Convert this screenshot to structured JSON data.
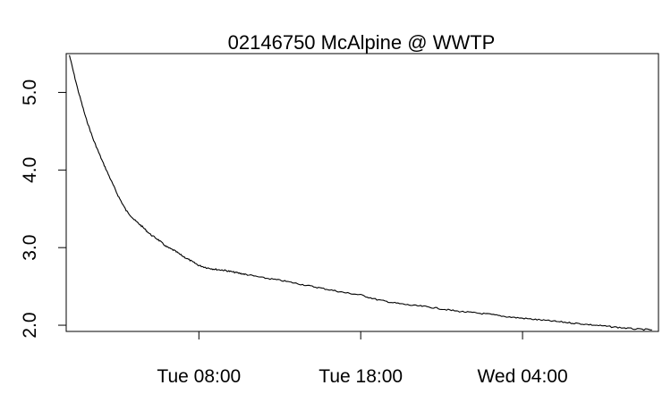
{
  "chart_data": {
    "type": "line",
    "title": "02146750 McAlpine @ WWTP",
    "xlabel": "",
    "ylabel": "",
    "x_ticks": [
      {
        "label": "Tue 08:00",
        "hours": 8
      },
      {
        "label": "Tue 18:00",
        "hours": 18
      },
      {
        "label": "Wed 04:00",
        "hours": 28
      }
    ],
    "y_ticks": [
      {
        "label": "2.0",
        "value": 2.0
      },
      {
        "label": "3.0",
        "value": 3.0
      },
      {
        "label": "4.0",
        "value": 4.0
      },
      {
        "label": "5.0",
        "value": 5.0
      }
    ],
    "xlim_hours": [
      -0.2,
      36.4
    ],
    "ylim": [
      1.92,
      5.5
    ],
    "series": [
      {
        "name": "",
        "points": [
          [
            0.0,
            5.48
          ],
          [
            0.5,
            5.05
          ],
          [
            1.0,
            4.68
          ],
          [
            1.5,
            4.38
          ],
          [
            2.0,
            4.13
          ],
          [
            2.5,
            3.9
          ],
          [
            3.0,
            3.67
          ],
          [
            3.5,
            3.48
          ],
          [
            4.0,
            3.36
          ],
          [
            4.5,
            3.27
          ],
          [
            5.0,
            3.17
          ],
          [
            5.5,
            3.1
          ],
          [
            6.0,
            3.01
          ],
          [
            6.5,
            2.96
          ],
          [
            7.0,
            2.89
          ],
          [
            7.5,
            2.83
          ],
          [
            8.0,
            2.77
          ],
          [
            8.5,
            2.74
          ],
          [
            9.0,
            2.72
          ],
          [
            9.5,
            2.71
          ],
          [
            10.0,
            2.69
          ],
          [
            10.5,
            2.67
          ],
          [
            11.0,
            2.65
          ],
          [
            12.0,
            2.61
          ],
          [
            13.0,
            2.58
          ],
          [
            14.0,
            2.54
          ],
          [
            15.0,
            2.5
          ],
          [
            16.0,
            2.46
          ],
          [
            17.0,
            2.42
          ],
          [
            18.0,
            2.39
          ],
          [
            19.0,
            2.33
          ],
          [
            20.0,
            2.29
          ],
          [
            21.0,
            2.26
          ],
          [
            22.0,
            2.24
          ],
          [
            23.0,
            2.21
          ],
          [
            24.0,
            2.18
          ],
          [
            25.0,
            2.16
          ],
          [
            26.0,
            2.14
          ],
          [
            27.0,
            2.11
          ],
          [
            28.0,
            2.09
          ],
          [
            29.0,
            2.07
          ],
          [
            30.0,
            2.05
          ],
          [
            31.0,
            2.03
          ],
          [
            32.0,
            2.01
          ],
          [
            33.0,
            1.99
          ],
          [
            34.0,
            1.97
          ],
          [
            35.0,
            1.95
          ],
          [
            36.0,
            1.94
          ]
        ]
      }
    ],
    "grid": false,
    "legend": "none"
  }
}
